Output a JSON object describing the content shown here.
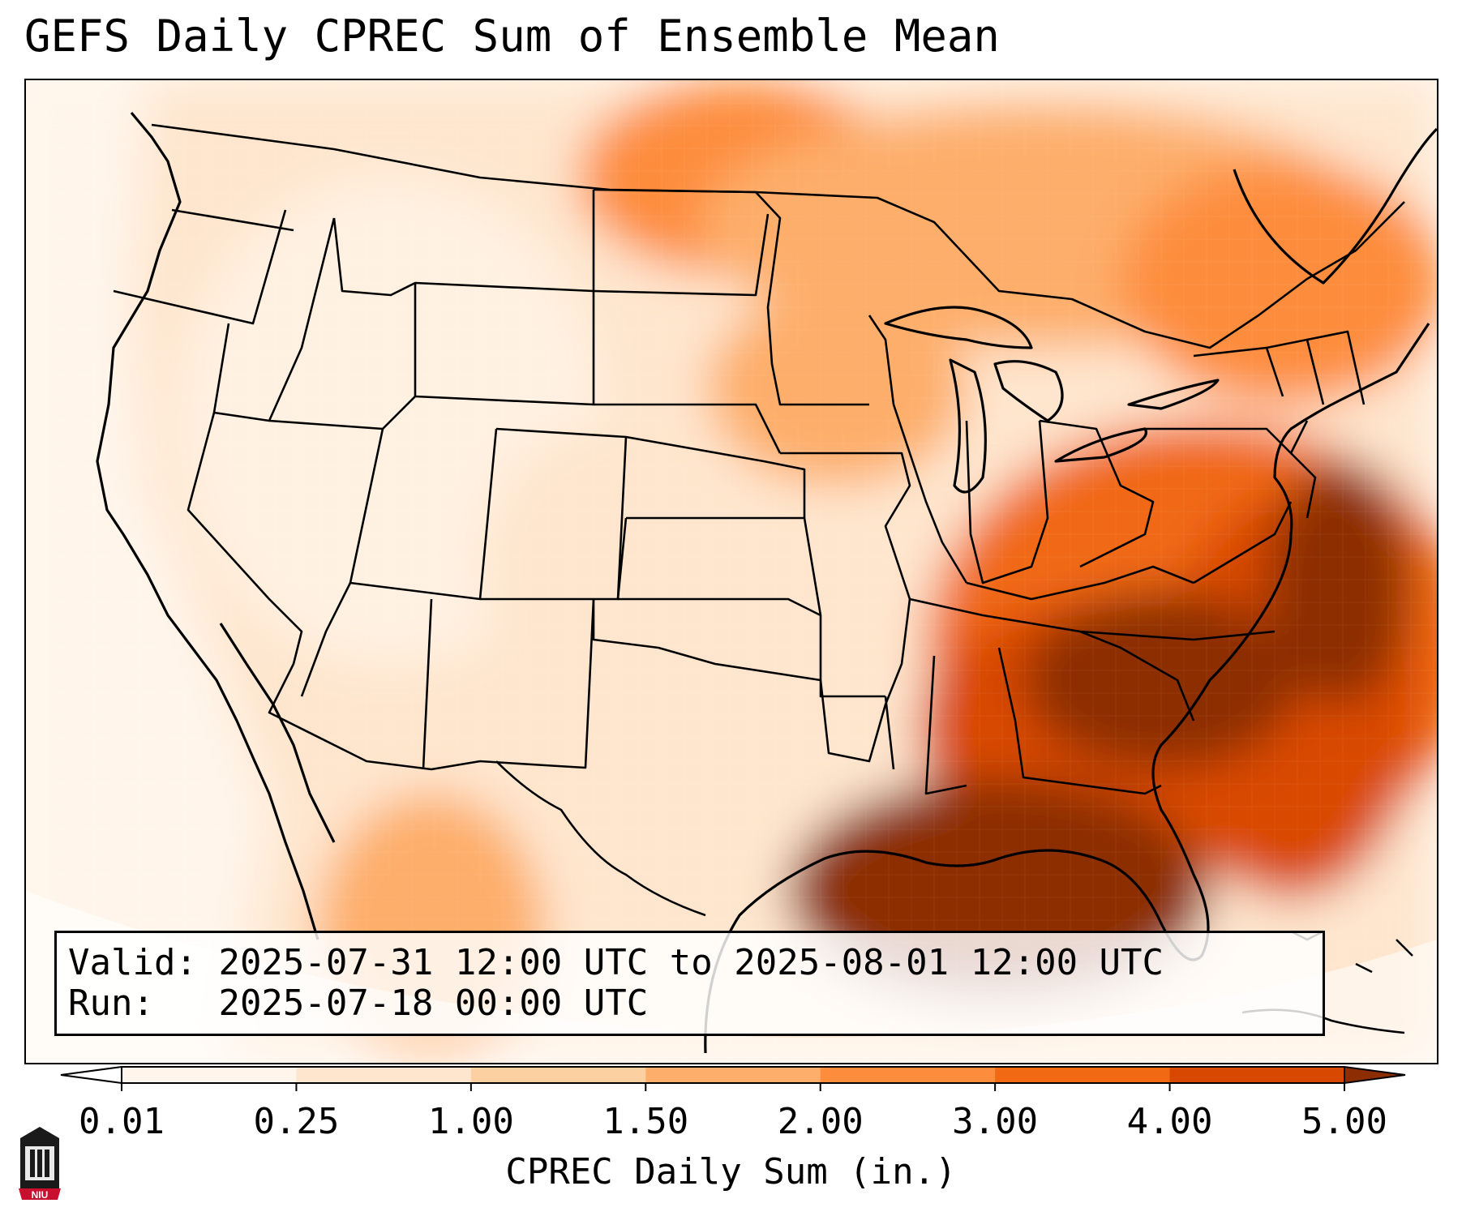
{
  "title": "GEFS Daily CPREC Sum of Ensemble Mean",
  "info": {
    "valid_label": "Valid:",
    "valid_value": "2025-07-31 12:00 UTC to 2025-08-01 12:00 UTC",
    "run_label": "Run:",
    "run_value": "2025-07-18 00:00 UTC"
  },
  "colorbar": {
    "label": "CPREC Daily Sum (in.)",
    "ticks": [
      "0.01",
      "0.25",
      "1.00",
      "1.50",
      "2.00",
      "3.00",
      "4.00",
      "5.00"
    ],
    "colors": [
      "#fff5eb",
      "#fee6ce",
      "#fdd0a2",
      "#fdae6b",
      "#fd8d3c",
      "#f16913",
      "#d94801",
      "#8c2d04"
    ],
    "under_color": "#ffffff",
    "over_color": "#8c2d04"
  },
  "map": {
    "region": "Contiguous United States",
    "field_pattern": "heaviest precipitation over the Southeast U.S., Gulf of Mexico and western Atlantic; moderate amounts over the Upper Midwest, Great Lakes and Northeast; light amounts over the West and Plains"
  },
  "logo": {
    "text": "NIU"
  }
}
